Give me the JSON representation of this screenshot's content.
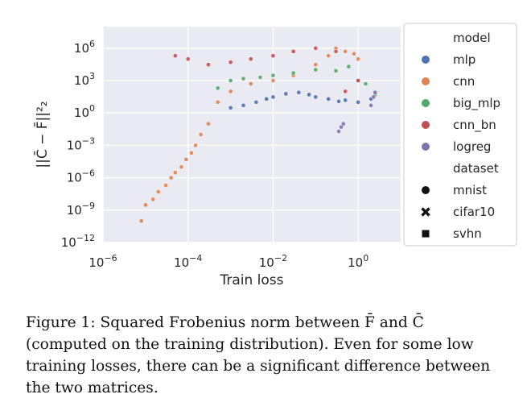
{
  "chart_data": {
    "type": "scatter",
    "title": "",
    "xlabel": "Train loss",
    "ylabel": "||C̄ − F̄||²₂",
    "x_scale": "log",
    "y_scale": "log",
    "xlim": [
      1e-06,
      10
    ],
    "ylim": [
      1e-12,
      100000000.0
    ],
    "x_ticks": [
      {
        "value": 1e-06,
        "base": "10",
        "exp": "−6"
      },
      {
        "value": 0.0001,
        "base": "10",
        "exp": "−4"
      },
      {
        "value": 0.01,
        "base": "10",
        "exp": "−2"
      },
      {
        "value": 1,
        "base": "10",
        "exp": "0"
      }
    ],
    "y_ticks": [
      {
        "value": 1e-12,
        "base": "10",
        "exp": "−12"
      },
      {
        "value": 1e-09,
        "base": "10",
        "exp": "−9"
      },
      {
        "value": 1e-06,
        "base": "10",
        "exp": "−6"
      },
      {
        "value": 0.001,
        "base": "10",
        "exp": "−3"
      },
      {
        "value": 1,
        "base": "10",
        "exp": "0"
      },
      {
        "value": 1000.0,
        "base": "10",
        "exp": "3"
      },
      {
        "value": 1000000.0,
        "base": "10",
        "exp": "6"
      }
    ],
    "grid": true,
    "legend_placement": "right",
    "legend": {
      "hue_title": "model",
      "hue": [
        {
          "name": "mlp",
          "color": "#4c72b0"
        },
        {
          "name": "cnn",
          "color": "#dd8452"
        },
        {
          "name": "big_mlp",
          "color": "#55a868"
        },
        {
          "name": "cnn_bn",
          "color": "#c44e52"
        },
        {
          "name": "logreg",
          "color": "#8172b3"
        }
      ],
      "style_title": "dataset",
      "style": [
        {
          "name": "mnist",
          "marker": "circle"
        },
        {
          "name": "cifar10",
          "marker": "x"
        },
        {
          "name": "svhn",
          "marker": "square"
        }
      ]
    },
    "series": [
      {
        "name": "cnn",
        "color": "#dd8452",
        "points": [
          [
            8e-06,
            1e-10
          ],
          [
            1e-05,
            3e-09
          ],
          [
            1.5e-05,
            1e-08
          ],
          [
            2e-05,
            5e-08
          ],
          [
            3e-05,
            2e-07
          ],
          [
            4e-05,
            1e-06
          ],
          [
            5e-05,
            3e-06
          ],
          [
            7e-05,
            1e-05
          ],
          [
            9e-05,
            5e-05
          ],
          [
            0.00012,
            0.0002
          ],
          [
            0.00015,
            0.001
          ],
          [
            0.0002,
            0.01
          ],
          [
            0.0003,
            0.1
          ],
          [
            0.0005,
            10
          ],
          [
            0.001,
            100
          ],
          [
            0.003,
            500
          ],
          [
            0.01,
            1000
          ],
          [
            0.03,
            3000
          ],
          [
            0.1,
            30000.0
          ],
          [
            0.2,
            200000.0
          ],
          [
            0.3,
            1000000.0
          ],
          [
            0.5,
            500000.0
          ],
          [
            0.8,
            300000.0
          ],
          [
            1.0,
            100000.0
          ]
        ]
      },
      {
        "name": "mlp",
        "color": "#4c72b0",
        "points": [
          [
            0.001,
            3
          ],
          [
            0.002,
            5
          ],
          [
            0.004,
            10
          ],
          [
            0.007,
            20
          ],
          [
            0.01,
            30
          ],
          [
            0.02,
            60
          ],
          [
            0.04,
            80
          ],
          [
            0.07,
            50
          ],
          [
            0.1,
            30
          ],
          [
            0.2,
            20
          ],
          [
            0.35,
            12
          ],
          [
            0.5,
            15
          ],
          [
            1.0,
            10
          ],
          [
            2.0,
            20
          ]
        ]
      },
      {
        "name": "big_mlp",
        "color": "#55a868",
        "points": [
          [
            0.0005,
            200
          ],
          [
            0.001,
            1000
          ],
          [
            0.002,
            1500
          ],
          [
            0.005,
            2000
          ],
          [
            0.01,
            3000
          ],
          [
            0.03,
            5000
          ],
          [
            0.1,
            10000.0
          ],
          [
            0.3,
            8000.0
          ],
          [
            0.6,
            20000.0
          ],
          [
            1.0,
            1000.0
          ],
          [
            1.5,
            500
          ],
          [
            2.5,
            50
          ]
        ]
      },
      {
        "name": "cnn_bn",
        "color": "#c44e52",
        "points": [
          [
            5e-05,
            200000.0
          ],
          [
            0.0001,
            100000.0
          ],
          [
            0.0003,
            30000.0
          ],
          [
            0.001,
            50000.0
          ],
          [
            0.003,
            100000.0
          ],
          [
            0.01,
            200000.0
          ],
          [
            0.03,
            500000.0
          ],
          [
            0.1,
            1000000.0
          ],
          [
            0.3,
            500000.0
          ],
          [
            0.5,
            100
          ],
          [
            1.0,
            1000
          ]
        ]
      },
      {
        "name": "logreg",
        "color": "#8172b3",
        "points": [
          [
            0.35,
            0.02
          ],
          [
            0.4,
            0.05
          ],
          [
            0.45,
            0.1
          ],
          [
            2.0,
            5
          ],
          [
            2.3,
            30
          ],
          [
            2.5,
            80
          ]
        ]
      }
    ]
  },
  "caption": {
    "label": "Figure 1:",
    "text": "Squared Frobenius norm between F̄ and C̄ (computed on the training distribution). Even for some low training losses, there can be a significant difference between the two matrices."
  }
}
